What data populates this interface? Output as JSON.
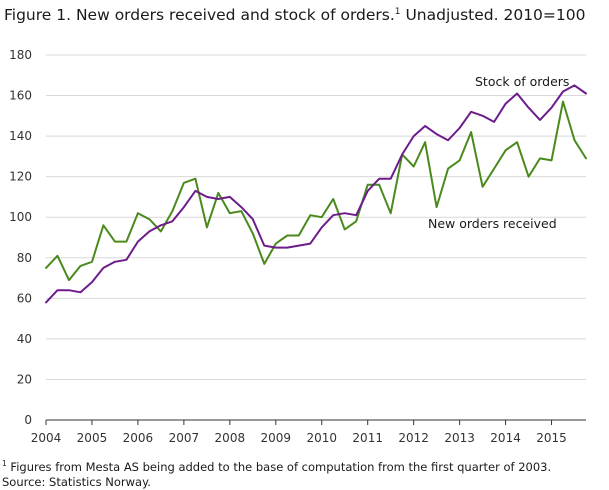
{
  "title": {
    "main": "Figure 1. New orders received and stock of orders.",
    "superscript": "1",
    "suffix": " Unadjusted. 2010=100"
  },
  "footnote": {
    "superscript": "1",
    "text": " Figures from Mesta AS being added to the base of computation from the first quarter of 2003.",
    "source": "Source: Statistics Norway."
  },
  "colors": {
    "stock": "#6c1d8b",
    "new_orders": "#4a8a1c",
    "grid": "#d8d8d8",
    "axis": "#333333"
  },
  "chart_data": {
    "type": "line",
    "title": "Figure 1. New orders received and stock of orders.1 Unadjusted. 2010=100",
    "xlabel": "",
    "ylabel": "",
    "ylim": [
      0,
      180
    ],
    "yticks": [
      0,
      20,
      40,
      60,
      80,
      100,
      120,
      140,
      160,
      180
    ],
    "xlim": [
      2004,
      2015.75
    ],
    "xticks": [
      2004,
      2005,
      2006,
      2007,
      2008,
      2009,
      2010,
      2011,
      2012,
      2013,
      2014,
      2015
    ],
    "grid": true,
    "x": [
      2004,
      2004.25,
      2004.5,
      2004.75,
      2005,
      2005.25,
      2005.5,
      2005.75,
      2006,
      2006.25,
      2006.5,
      2006.75,
      2007,
      2007.25,
      2007.5,
      2007.75,
      2008,
      2008.25,
      2008.5,
      2008.75,
      2009,
      2009.25,
      2009.5,
      2009.75,
      2010,
      2010.25,
      2010.5,
      2010.75,
      2011,
      2011.25,
      2011.5,
      2011.75,
      2012,
      2012.25,
      2012.5,
      2012.75,
      2013,
      2013.25,
      2013.5,
      2013.75,
      2014,
      2014.25,
      2014.5,
      2014.75,
      2015,
      2015.25,
      2015.5,
      2015.75
    ],
    "series": [
      {
        "name": "Stock of orders",
        "values": [
          58,
          64,
          64,
          63,
          68,
          75,
          78,
          79,
          88,
          93,
          96,
          98,
          105,
          113,
          110,
          109,
          110,
          105,
          99,
          86,
          85,
          85,
          86,
          87,
          95,
          101,
          102,
          101,
          113,
          119,
          119,
          131,
          140,
          145,
          141,
          138,
          144,
          152,
          150,
          147,
          156,
          161,
          154,
          148,
          154,
          162,
          165,
          161
        ]
      },
      {
        "name": "New orders received",
        "values": [
          75,
          81,
          69,
          76,
          78,
          96,
          88,
          88,
          102,
          99,
          93,
          103,
          117,
          119,
          95,
          112,
          102,
          103,
          92,
          77,
          87,
          91,
          91,
          101,
          100,
          109,
          94,
          98,
          116,
          116,
          102,
          131,
          125,
          137,
          105,
          124,
          128,
          142,
          115,
          124,
          133,
          137,
          120,
          129,
          128,
          157,
          138,
          129
        ]
      }
    ],
    "series_labels": {
      "stock": "Stock of orders",
      "new_orders": "New orders received"
    }
  }
}
